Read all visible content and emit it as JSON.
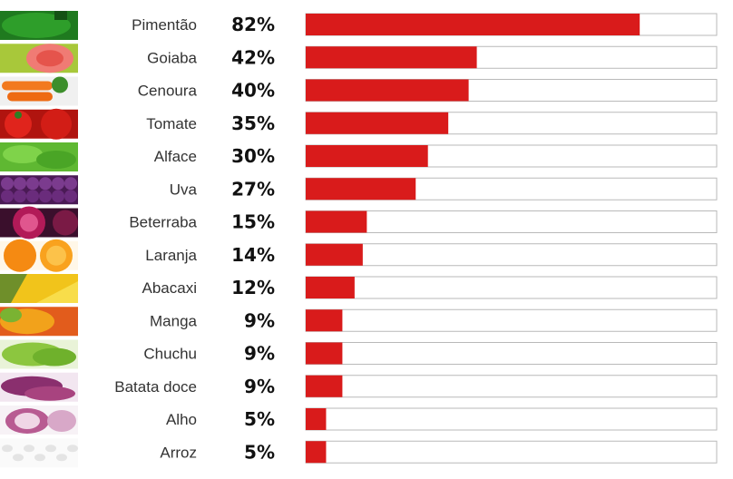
{
  "chart_data": {
    "type": "bar",
    "orientation": "horizontal",
    "title": "",
    "xlabel": "",
    "ylabel": "",
    "categories": [
      "Pimentão",
      "Goiaba",
      "Cenoura",
      "Tomate",
      "Alface",
      "Uva",
      "Beterraba",
      "Laranja",
      "Abacaxi",
      "Manga",
      "Chuchu",
      "Batata doce",
      "Alho",
      "Arroz"
    ],
    "values": [
      82,
      42,
      40,
      35,
      30,
      27,
      15,
      14,
      12,
      9,
      9,
      9,
      5,
      5
    ],
    "value_labels": [
      "82%",
      "42%",
      "40%",
      "35%",
      "30%",
      "27%",
      "15%",
      "14%",
      "12%",
      "9%",
      "9%",
      "9%",
      "5%",
      "5%"
    ],
    "xlim": [
      0,
      100
    ],
    "grid": false,
    "legend": "none"
  },
  "colors": {
    "bar": "#d91b1b",
    "track_border": "#b9b9b9",
    "label_text": "#333333",
    "value_text": "#111111"
  },
  "icons": [
    "pepper-photo",
    "guava-photo",
    "carrot-photo",
    "tomato-photo",
    "lettuce-photo",
    "grape-photo",
    "beet-photo",
    "orange-photo",
    "pineapple-photo",
    "mango-photo",
    "chayote-photo",
    "sweet-potato-photo",
    "garlic-photo",
    "rice-photo"
  ]
}
